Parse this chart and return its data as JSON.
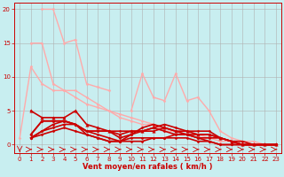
{
  "title": "",
  "xlabel": "Vent moyen/en rafales ( km/h )",
  "background_color": "#c8eef0",
  "grid_color": "#b0b0b0",
  "text_color": "#cc0000",
  "xlim": [
    -0.5,
    23.5
  ],
  "ylim": [
    -1.2,
    21
  ],
  "yticks": [
    0,
    5,
    10,
    15,
    20
  ],
  "xticks": [
    0,
    1,
    2,
    3,
    4,
    5,
    6,
    7,
    8,
    9,
    10,
    11,
    12,
    13,
    14,
    15,
    16,
    17,
    18,
    19,
    20,
    21,
    22,
    23
  ],
  "series": [
    {
      "x": [
        1,
        2,
        3,
        4,
        5,
        6,
        7,
        8,
        9,
        10,
        11,
        12,
        13,
        14,
        15,
        16,
        17,
        18,
        19,
        20,
        21,
        22,
        23
      ],
      "y": [
        15,
        15,
        9,
        8,
        7,
        6,
        5.5,
        5,
        4.5,
        4,
        3.5,
        3,
        2.5,
        2,
        1.5,
        1.5,
        1,
        1,
        0.5,
        0.5,
        0,
        0,
        0
      ],
      "color": "#ffaaaa",
      "linewidth": 1.0,
      "marker": "D",
      "markersize": 1.5
    },
    {
      "x": [
        0,
        1,
        2,
        3,
        4,
        5,
        6,
        7,
        8,
        9,
        10,
        11,
        12,
        13,
        14,
        15,
        16,
        17,
        18,
        19,
        20,
        21,
        22,
        23
      ],
      "y": [
        1,
        11.5,
        9,
        8,
        8,
        8,
        7,
        6,
        5,
        4,
        3.5,
        3,
        3,
        2,
        2,
        1.5,
        1,
        1,
        0.5,
        0.5,
        0,
        0,
        0,
        0
      ],
      "color": "#ffaaaa",
      "linewidth": 1.0,
      "marker": "D",
      "markersize": 1.5
    },
    {
      "x": [
        2,
        3,
        4,
        5,
        6,
        7,
        8
      ],
      "y": [
        20,
        20,
        15,
        15.5,
        9,
        8.5,
        8
      ],
      "color": "#ffaaaa",
      "linewidth": 1.0,
      "marker": "D",
      "markersize": 1.5
    },
    {
      "x": [
        10,
        11,
        12,
        13,
        14,
        15,
        16,
        17,
        18,
        19,
        20,
        21,
        22,
        23
      ],
      "y": [
        5,
        10.5,
        7,
        6.5,
        10.5,
        6.5,
        7,
        5,
        2,
        1,
        0.5,
        0.5,
        0,
        0
      ],
      "color": "#ffaaaa",
      "linewidth": 1.0,
      "marker": "D",
      "markersize": 1.5
    },
    {
      "x": [
        1,
        2,
        3,
        4,
        5,
        6,
        7,
        8,
        9,
        10,
        11,
        12,
        13,
        14,
        15,
        16,
        17,
        18,
        19,
        20,
        21,
        22,
        23
      ],
      "y": [
        5,
        4,
        4,
        4,
        5,
        3,
        2.5,
        2,
        1.5,
        2,
        2,
        2,
        2.5,
        2,
        2,
        1.5,
        1.5,
        1,
        0.5,
        0,
        0,
        0,
        0
      ],
      "color": "#cc0000",
      "linewidth": 1.2,
      "marker": "^",
      "markersize": 2.5
    },
    {
      "x": [
        1,
        2,
        3,
        4,
        5,
        6,
        7,
        8,
        9,
        10,
        11,
        12,
        13,
        14,
        15,
        16,
        17,
        18,
        19,
        20,
        21,
        22,
        23
      ],
      "y": [
        1.5,
        3.5,
        3.5,
        3.5,
        3,
        2,
        2,
        2,
        2,
        2,
        2,
        2.5,
        2,
        1.5,
        1.5,
        1,
        1,
        1,
        0.5,
        0,
        0,
        0,
        0
      ],
      "color": "#cc0000",
      "linewidth": 1.2,
      "marker": "D",
      "markersize": 1.5
    },
    {
      "x": [
        1,
        2,
        3,
        4,
        5,
        6,
        7,
        8,
        9,
        10,
        11,
        12,
        13,
        14,
        15,
        16,
        17,
        18,
        19,
        20,
        21,
        22,
        23
      ],
      "y": [
        1.5,
        3.5,
        3.5,
        3.5,
        3,
        2,
        2,
        2,
        1,
        1.5,
        2.5,
        3,
        2.5,
        2,
        1.5,
        1.5,
        1.5,
        1,
        0.5,
        0,
        0,
        0,
        0
      ],
      "color": "#cc0000",
      "linewidth": 1.2,
      "marker": "D",
      "markersize": 1.5
    },
    {
      "x": [
        1,
        2,
        3,
        4,
        5,
        6,
        7,
        8,
        9,
        10,
        11,
        12,
        13,
        14,
        15,
        16,
        17,
        18,
        19,
        20,
        21,
        22,
        23
      ],
      "y": [
        1,
        2,
        3,
        3.5,
        3,
        1.5,
        1,
        0.5,
        0.5,
        1.5,
        2,
        2.5,
        3,
        2.5,
        2,
        2,
        2,
        1,
        0.5,
        0.5,
        0,
        0,
        0
      ],
      "color": "#cc0000",
      "linewidth": 1.2,
      "marker": "D",
      "markersize": 1.5
    },
    {
      "x": [
        1,
        2,
        3,
        4,
        5,
        6,
        7,
        8,
        9,
        10,
        11,
        12,
        13,
        14,
        15,
        16,
        17,
        18,
        19,
        20,
        21,
        22,
        23
      ],
      "y": [
        1,
        2,
        2.5,
        3,
        3,
        2,
        1.5,
        1,
        0.5,
        0.5,
        0.5,
        1,
        1,
        1.5,
        1.5,
        1,
        0.5,
        0,
        0,
        0,
        0,
        0,
        0
      ],
      "color": "#cc0000",
      "linewidth": 1.2,
      "marker": "D",
      "markersize": 1.5
    },
    {
      "x": [
        1,
        2,
        3,
        4,
        5,
        6,
        7,
        8,
        9,
        10,
        11,
        12,
        13,
        14,
        15,
        16,
        17,
        18,
        19,
        20,
        21,
        22,
        23
      ],
      "y": [
        1,
        1.5,
        2,
        2.5,
        2,
        1.5,
        1,
        0.5,
        0.5,
        1,
        1,
        1,
        1,
        1,
        1,
        0.5,
        0.5,
        0,
        0,
        0,
        0,
        0,
        0
      ],
      "color": "#cc0000",
      "linewidth": 1.2,
      "marker": "D",
      "markersize": 1.5
    }
  ],
  "arrow_row": {
    "x_down": [
      0
    ],
    "x_right": [
      1,
      2,
      3,
      4,
      5,
      6,
      7,
      8,
      9,
      10,
      11,
      12,
      13,
      14,
      15,
      16,
      17,
      18,
      19,
      20,
      21,
      22,
      23
    ],
    "y": -0.7,
    "color": "#cc0000"
  }
}
